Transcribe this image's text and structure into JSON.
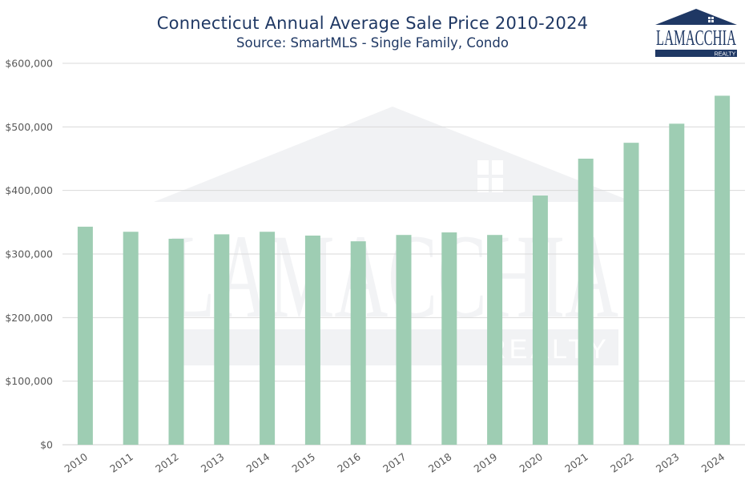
{
  "chart_data": {
    "type": "bar",
    "title": "Connecticut Annual Average Sale Price 2010-2024",
    "subtitle": "Source: SmartMLS - Single Family, Condo",
    "categories": [
      "2010",
      "2011",
      "2012",
      "2013",
      "2014",
      "2015",
      "2016",
      "2017",
      "2018",
      "2019",
      "2020",
      "2021",
      "2022",
      "2023",
      "2024"
    ],
    "values": [
      343000,
      335000,
      324000,
      331000,
      335000,
      329000,
      320000,
      330000,
      334000,
      330000,
      392000,
      450000,
      475000,
      505000,
      549000
    ],
    "y_ticks": [
      "$0",
      "$100,000",
      "$200,000",
      "$300,000",
      "$400,000",
      "$500,000",
      "$600,000"
    ],
    "y_tick_values": [
      0,
      100000,
      200000,
      300000,
      400000,
      500000,
      600000
    ],
    "ylim": [
      0,
      600000
    ],
    "xlabel": "",
    "ylabel": "",
    "grid": true,
    "bar_color": "#9ecdb3",
    "grid_color": "#d9d9d9",
    "axis_color": "#cfcfcf",
    "tick_color": "#595959"
  },
  "logo": {
    "brand": "LAMACCHIA",
    "sub": "REALTY",
    "color": "#1f3864"
  },
  "watermark": {
    "brand": "LAMACCHIA",
    "sub": "REALTY"
  }
}
